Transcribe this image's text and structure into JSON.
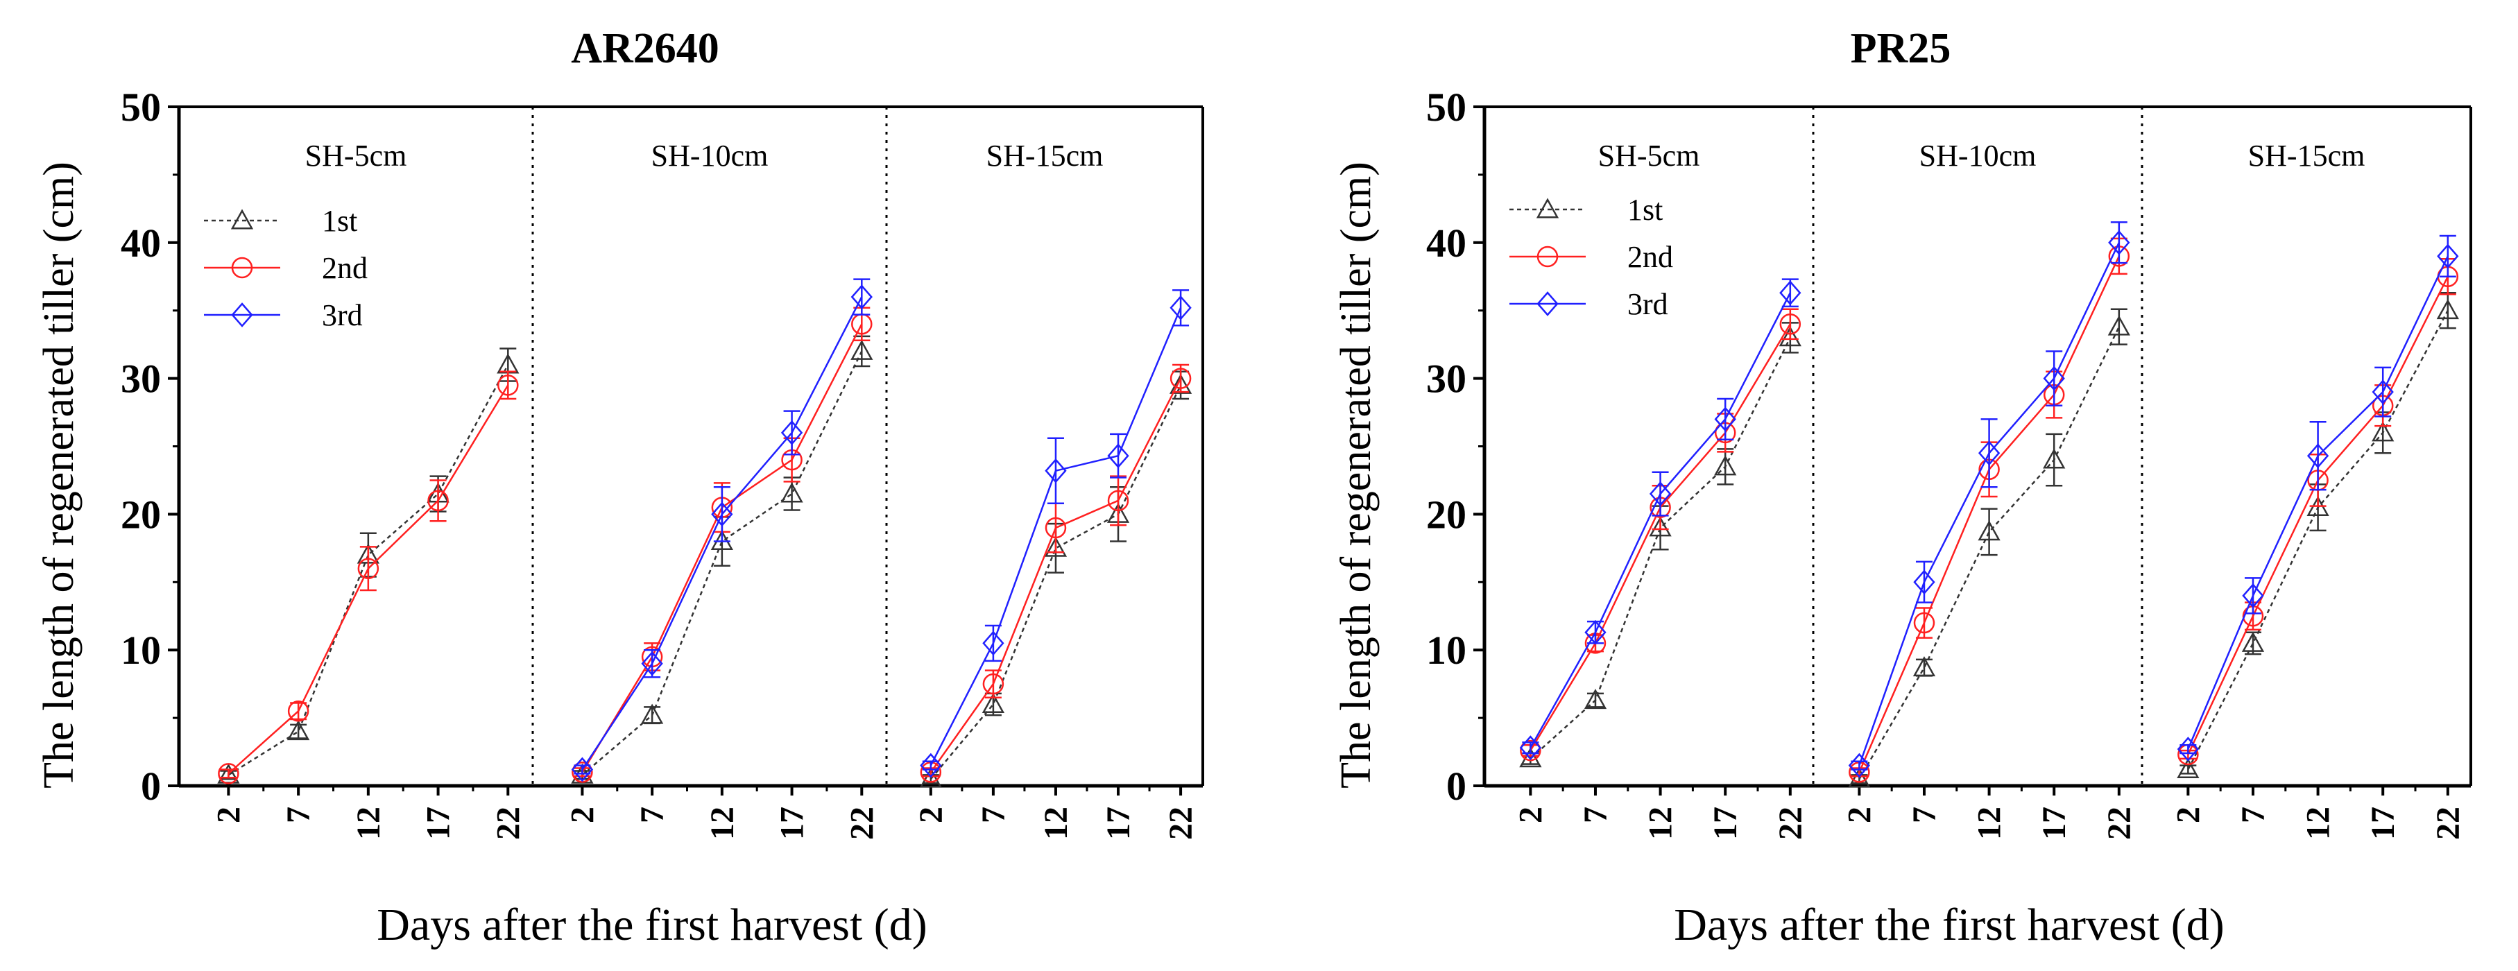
{
  "chart_data": [
    {
      "type": "line",
      "title": "AR2640",
      "ylabel": "The length of  regenerated tiller (cm)",
      "xlabel": "Days after the first harvest (d)",
      "ylim": [
        0,
        50
      ],
      "yticks": [
        "0",
        "10",
        "20",
        "30",
        "40",
        "50"
      ],
      "panels": [
        {
          "label": "SH-5cm",
          "x": [
            2,
            7,
            12,
            17,
            22
          ],
          "series": [
            {
              "name": "1st",
              "values": [
                0.8,
                4.0,
                17.0,
                21.5,
                31.0
              ],
              "errors": [
                0.3,
                0.5,
                1.6,
                1.3,
                1.2
              ]
            },
            {
              "name": "2nd",
              "values": [
                0.9,
                5.5,
                16.0,
                21.0,
                29.5
              ],
              "errors": [
                0.3,
                0.6,
                1.6,
                1.5,
                1.0
              ]
            },
            {
              "name": "3rd",
              "values": [
                null,
                null,
                null,
                null,
                null
              ],
              "errors": [
                null,
                null,
                null,
                null,
                null
              ]
            }
          ]
        },
        {
          "label": "SH-10cm",
          "x": [
            2,
            7,
            12,
            17,
            22
          ],
          "series": [
            {
              "name": "1st",
              "values": [
                0.8,
                5.2,
                18.0,
                21.5,
                32.0
              ],
              "errors": [
                0.3,
                0.6,
                1.8,
                1.2,
                1.1
              ]
            },
            {
              "name": "2nd",
              "values": [
                1.0,
                9.5,
                20.5,
                24.0,
                34.0
              ],
              "errors": [
                0.3,
                1.0,
                1.8,
                1.6,
                1.2
              ]
            },
            {
              "name": "3rd",
              "values": [
                1.2,
                9.0,
                20.0,
                26.0,
                36.0
              ],
              "errors": [
                0.3,
                1.0,
                2.0,
                1.6,
                1.3
              ]
            }
          ]
        },
        {
          "label": "SH-15cm",
          "x": [
            2,
            7,
            12,
            17,
            22
          ],
          "series": [
            {
              "name": "1st",
              "values": [
                0.5,
                6.0,
                17.5,
                20.0,
                29.5
              ],
              "errors": [
                0.3,
                0.8,
                1.8,
                2.0,
                1.0
              ]
            },
            {
              "name": "2nd",
              "values": [
                1.0,
                7.5,
                19.0,
                21.0,
                30.0
              ],
              "errors": [
                0.3,
                1.0,
                1.8,
                1.8,
                1.0
              ]
            },
            {
              "name": "3rd",
              "values": [
                1.5,
                10.5,
                23.2,
                24.3,
                35.2
              ],
              "errors": [
                0.3,
                1.3,
                2.4,
                1.6,
                1.3
              ]
            }
          ]
        }
      ],
      "legend": [
        "1st",
        "2nd",
        "3rd"
      ]
    },
    {
      "type": "line",
      "title": "PR25",
      "ylabel": "The length of  regenerated tiller (cm)",
      "xlabel": "Days after the first harvest (d)",
      "ylim": [
        0,
        50
      ],
      "yticks": [
        "0",
        "10",
        "20",
        "30",
        "40",
        "50"
      ],
      "panels": [
        {
          "label": "SH-5cm",
          "x": [
            2,
            7,
            12,
            17,
            22
          ],
          "series": [
            {
              "name": "1st",
              "values": [
                2.0,
                6.3,
                19.0,
                23.5,
                33.0
              ],
              "errors": [
                0.4,
                0.5,
                1.6,
                1.3,
                1.1
              ]
            },
            {
              "name": "2nd",
              "values": [
                2.6,
                10.5,
                20.5,
                26.0,
                34.0
              ],
              "errors": [
                0.4,
                0.6,
                1.6,
                1.4,
                1.1
              ]
            },
            {
              "name": "3rd",
              "values": [
                2.8,
                11.3,
                21.5,
                27.0,
                36.3
              ],
              "errors": [
                0.4,
                0.8,
                1.6,
                1.5,
                1.0
              ]
            }
          ]
        },
        {
          "label": "SH-10cm",
          "x": [
            2,
            7,
            12,
            17,
            22
          ],
          "series": [
            {
              "name": "1st",
              "values": [
                0.5,
                8.7,
                18.7,
                24.0,
                33.8
              ],
              "errors": [
                0.3,
                0.6,
                1.7,
                1.9,
                1.3
              ]
            },
            {
              "name": "2nd",
              "values": [
                1.0,
                12.0,
                23.3,
                28.8,
                39.0
              ],
              "errors": [
                0.3,
                1.1,
                2.0,
                1.7,
                1.3
              ]
            },
            {
              "name": "3rd",
              "values": [
                1.5,
                15.0,
                24.5,
                30.0,
                40.0
              ],
              "errors": [
                0.3,
                1.5,
                2.5,
                2.0,
                1.5
              ]
            }
          ]
        },
        {
          "label": "SH-15cm",
          "x": [
            2,
            7,
            12,
            17,
            22
          ],
          "series": [
            {
              "name": "1st",
              "values": [
                1.2,
                10.5,
                20.5,
                26.0,
                35.0
              ],
              "errors": [
                0.3,
                0.8,
                1.7,
                1.5,
                1.3
              ]
            },
            {
              "name": "2nd",
              "values": [
                2.3,
                12.5,
                22.5,
                28.0,
                37.5
              ],
              "errors": [
                0.3,
                1.0,
                1.9,
                1.5,
                1.3
              ]
            },
            {
              "name": "3rd",
              "values": [
                2.7,
                14.0,
                24.3,
                29.0,
                39.0
              ],
              "errors": [
                0.3,
                1.3,
                2.5,
                1.8,
                1.5
              ]
            }
          ]
        }
      ],
      "legend": [
        "1st",
        "2nd",
        "3rd"
      ]
    }
  ],
  "colors": {
    "1st": "#333333",
    "2nd": "#ff2020",
    "3rd": "#2020ff",
    "axis": "#000000"
  }
}
